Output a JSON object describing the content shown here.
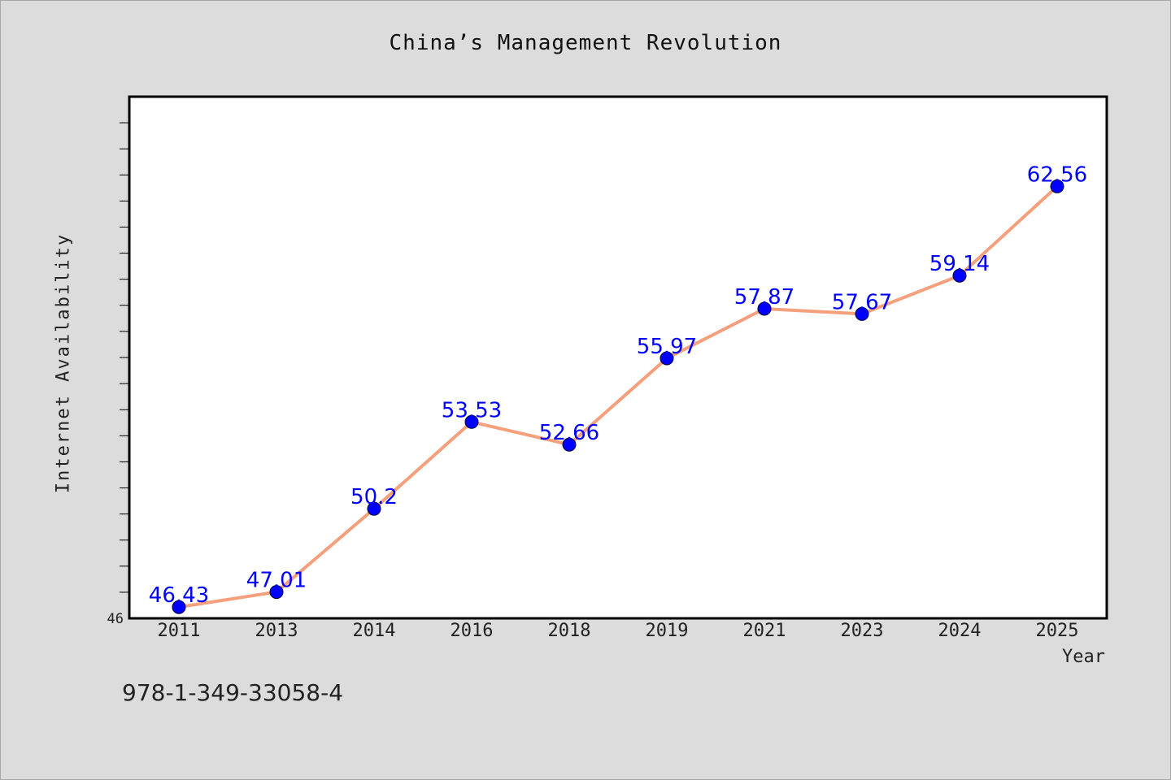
{
  "chart_data": {
    "type": "line",
    "title": "China’s Management Revolution",
    "xlabel": "Year",
    "ylabel": "Internet Availability",
    "categories": [
      "2011",
      "2013",
      "2014",
      "2016",
      "2018",
      "2019",
      "2021",
      "2023",
      "2024",
      "2025"
    ],
    "series": [
      {
        "values": [
          46.43,
          47.01,
          50.2,
          53.53,
          52.66,
          55.97,
          57.87,
          57.67,
          59.14,
          62.56
        ],
        "color": "#f4a07c",
        "marker_color": "#0000ff"
      }
    ],
    "data_labels": [
      "46.43",
      "47.01",
      "50.2",
      "53.53",
      "52.66",
      "55.97",
      "57.87",
      "57.67",
      "59.14",
      "62.56"
    ],
    "y_tick_labels": [
      "46"
    ],
    "ylim": [
      46,
      66
    ],
    "grid": false,
    "legend": "none"
  },
  "footer": {
    "isbn": "978-1-349-33058-4"
  }
}
